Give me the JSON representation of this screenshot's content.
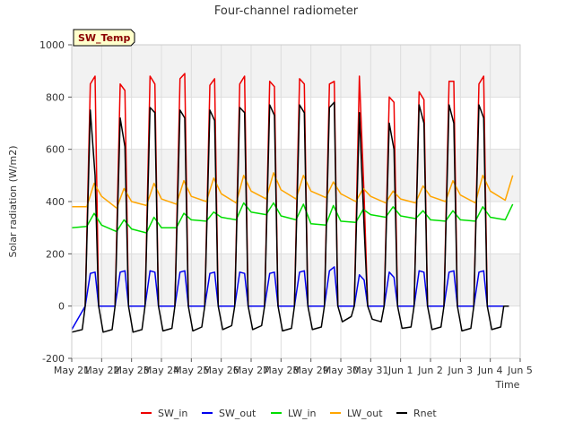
{
  "chart_data": {
    "type": "line",
    "title": "Four-channel radiometer",
    "xlabel": "Time",
    "ylabel": "Solar radiation (W/m2)",
    "badge": "SW_Temp",
    "ylim": [
      -200,
      1000
    ],
    "yticks": [
      -200,
      0,
      200,
      400,
      600,
      800,
      1000
    ],
    "xlim": [
      0,
      15
    ],
    "x_ticks": [
      {
        "pos": 0,
        "label": "May 21"
      },
      {
        "pos": 1,
        "label": "May 22"
      },
      {
        "pos": 2,
        "label": "May 23"
      },
      {
        "pos": 3,
        "label": "May 24"
      },
      {
        "pos": 4,
        "label": "May 25"
      },
      {
        "pos": 5,
        "label": "May 26"
      },
      {
        "pos": 6,
        "label": "May 27"
      },
      {
        "pos": 7,
        "label": "May 28"
      },
      {
        "pos": 8,
        "label": "May 29"
      },
      {
        "pos": 9,
        "label": "May 30"
      },
      {
        "pos": 10,
        "label": "May 31"
      },
      {
        "pos": 11,
        "label": "Jun 1"
      },
      {
        "pos": 12,
        "label": "Jun 2"
      },
      {
        "pos": 13,
        "label": "Jun 3"
      },
      {
        "pos": 14,
        "label": "Jun 4"
      },
      {
        "pos": 15,
        "label": "Jun 5"
      }
    ],
    "grid": true,
    "legend_position": "bottom",
    "series": [
      {
        "name": "SW_in",
        "color": "#ee0000",
        "x": [
          0.45,
          0.62,
          0.78,
          0.9,
          1.45,
          1.62,
          1.78,
          1.9,
          2.45,
          2.62,
          2.78,
          2.9,
          3.45,
          3.62,
          3.78,
          3.9,
          4.45,
          4.62,
          4.78,
          4.9,
          5.45,
          5.62,
          5.78,
          5.9,
          6.45,
          6.62,
          6.78,
          6.9,
          7.45,
          7.62,
          7.78,
          7.9,
          8.45,
          8.62,
          8.78,
          8.9,
          9.45,
          9.62,
          9.78,
          9.9,
          10.45,
          10.62,
          10.78,
          10.9,
          11.45,
          11.62,
          11.78,
          11.9,
          12.45,
          12.62,
          12.78,
          12.9,
          13.45,
          13.62,
          13.78,
          13.9,
          14.45,
          14.62
        ],
        "y": [
          0,
          850,
          880,
          0,
          0,
          850,
          825,
          0,
          0,
          880,
          850,
          0,
          0,
          870,
          890,
          0,
          0,
          845,
          870,
          0,
          0,
          850,
          880,
          0,
          0,
          860,
          840,
          0,
          0,
          870,
          850,
          0,
          0,
          850,
          860,
          0,
          0,
          880,
          420,
          0,
          0,
          800,
          780,
          0,
          0,
          820,
          790,
          0,
          0,
          860,
          860,
          0,
          0,
          850,
          880,
          0,
          0,
          0
        ]
      },
      {
        "name": "SW_out",
        "color": "#0000ee",
        "x": [
          0.0,
          0.45,
          0.62,
          0.78,
          0.9,
          1.45,
          1.62,
          1.78,
          1.9,
          2.45,
          2.62,
          2.78,
          2.9,
          3.45,
          3.62,
          3.78,
          3.9,
          4.45,
          4.62,
          4.78,
          4.9,
          5.45,
          5.62,
          5.78,
          5.9,
          6.45,
          6.62,
          6.78,
          6.9,
          7.45,
          7.62,
          7.78,
          7.9,
          8.45,
          8.62,
          8.78,
          8.9,
          9.45,
          9.62,
          9.78,
          9.9,
          10.45,
          10.62,
          10.78,
          10.9,
          11.45,
          11.62,
          11.78,
          11.9,
          12.45,
          12.62,
          12.78,
          12.9,
          13.45,
          13.62,
          13.78,
          13.9,
          14.45,
          14.62
        ],
        "y": [
          -90,
          0,
          125,
          130,
          0,
          0,
          130,
          135,
          0,
          0,
          135,
          130,
          0,
          0,
          130,
          135,
          0,
          0,
          125,
          130,
          0,
          0,
          130,
          125,
          0,
          0,
          125,
          130,
          0,
          0,
          130,
          135,
          0,
          0,
          135,
          150,
          0,
          0,
          120,
          100,
          0,
          0,
          130,
          110,
          0,
          0,
          135,
          130,
          0,
          0,
          130,
          135,
          0,
          0,
          130,
          135,
          0,
          0,
          0
        ]
      },
      {
        "name": "LW_in",
        "color": "#00dd00",
        "x": [
          0,
          0.5,
          0.75,
          1.0,
          1.5,
          1.75,
          2.0,
          2.5,
          2.75,
          3.0,
          3.5,
          3.75,
          4.0,
          4.5,
          4.75,
          5.0,
          5.5,
          5.75,
          6.0,
          6.5,
          6.75,
          7.0,
          7.5,
          7.75,
          8.0,
          8.5,
          8.75,
          9.0,
          9.5,
          9.75,
          10.0,
          10.5,
          10.75,
          11.0,
          11.5,
          11.75,
          12.0,
          12.5,
          12.75,
          13.0,
          13.5,
          13.75,
          14.0,
          14.5,
          14.75
        ],
        "y": [
          300,
          305,
          355,
          310,
          285,
          330,
          295,
          280,
          340,
          300,
          300,
          355,
          330,
          325,
          360,
          340,
          330,
          395,
          360,
          350,
          395,
          345,
          330,
          390,
          315,
          310,
          385,
          325,
          320,
          370,
          350,
          340,
          380,
          345,
          335,
          365,
          330,
          325,
          365,
          330,
          325,
          380,
          340,
          330,
          390
        ]
      },
      {
        "name": "LW_out",
        "color": "#ffa500",
        "x": [
          0,
          0.5,
          0.75,
          1.0,
          1.5,
          1.75,
          2.0,
          2.5,
          2.75,
          3.0,
          3.5,
          3.75,
          4.0,
          4.5,
          4.75,
          5.0,
          5.5,
          5.75,
          6.0,
          6.5,
          6.75,
          7.0,
          7.5,
          7.75,
          8.0,
          8.5,
          8.75,
          9.0,
          9.5,
          9.75,
          10.0,
          10.5,
          10.75,
          11.0,
          11.5,
          11.75,
          12.0,
          12.5,
          12.75,
          13.0,
          13.5,
          13.75,
          14.0,
          14.5,
          14.75
        ],
        "y": [
          380,
          380,
          470,
          420,
          375,
          450,
          400,
          385,
          470,
          410,
          390,
          480,
          420,
          400,
          490,
          430,
          395,
          500,
          440,
          410,
          510,
          445,
          410,
          500,
          440,
          415,
          475,
          430,
          400,
          450,
          420,
          395,
          440,
          410,
          395,
          460,
          420,
          400,
          480,
          425,
          395,
          500,
          440,
          405,
          500
        ]
      },
      {
        "name": "Rnet",
        "color": "#000000",
        "x": [
          0.0,
          0.35,
          0.45,
          0.62,
          0.78,
          0.9,
          1.05,
          1.35,
          1.45,
          1.62,
          1.78,
          1.9,
          2.05,
          2.35,
          2.45,
          2.62,
          2.78,
          2.9,
          3.05,
          3.35,
          3.45,
          3.62,
          3.78,
          3.9,
          4.05,
          4.35,
          4.45,
          4.62,
          4.78,
          4.9,
          5.05,
          5.35,
          5.45,
          5.62,
          5.78,
          5.9,
          6.05,
          6.35,
          6.45,
          6.62,
          6.78,
          6.9,
          7.05,
          7.35,
          7.45,
          7.62,
          7.78,
          7.9,
          8.05,
          8.35,
          8.45,
          8.62,
          8.78,
          8.9,
          9.05,
          9.35,
          9.45,
          9.62,
          9.78,
          9.9,
          10.05,
          10.35,
          10.45,
          10.62,
          10.78,
          10.9,
          11.05,
          11.35,
          11.45,
          11.62,
          11.78,
          11.9,
          12.05,
          12.35,
          12.45,
          12.62,
          12.78,
          12.9,
          13.05,
          13.35,
          13.45,
          13.62,
          13.78,
          13.9,
          14.05,
          14.35,
          14.45,
          14.62
        ],
        "y": [
          -100,
          -90,
          0,
          750,
          500,
          0,
          -100,
          -90,
          0,
          720,
          610,
          0,
          -100,
          -90,
          0,
          760,
          740,
          0,
          -95,
          -85,
          0,
          750,
          720,
          0,
          -95,
          -80,
          0,
          750,
          710,
          0,
          -90,
          -75,
          0,
          760,
          740,
          0,
          -90,
          -75,
          0,
          770,
          730,
          0,
          -95,
          -85,
          0,
          770,
          740,
          0,
          -90,
          -80,
          0,
          760,
          780,
          0,
          -60,
          -40,
          0,
          740,
          300,
          0,
          -50,
          -60,
          0,
          700,
          600,
          0,
          -85,
          -80,
          0,
          770,
          700,
          0,
          -90,
          -80,
          0,
          770,
          700,
          0,
          -95,
          -85,
          0,
          770,
          720,
          0,
          -90,
          -80,
          0,
          0
        ]
      }
    ]
  }
}
